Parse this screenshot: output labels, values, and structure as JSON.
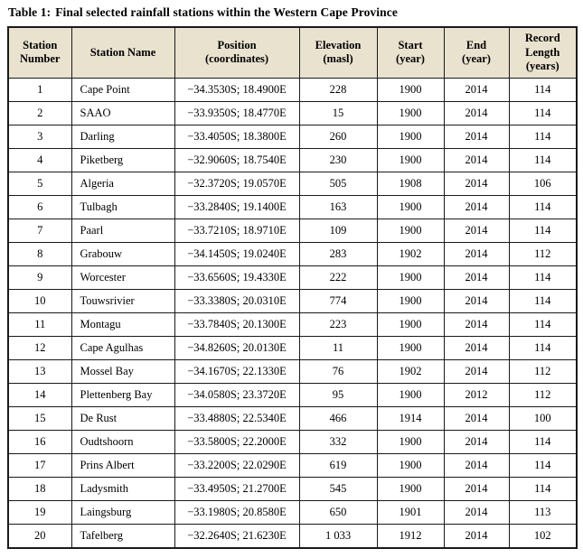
{
  "caption": {
    "label": "Table 1:",
    "text": "Final selected rainfall stations within the Western Cape Province"
  },
  "colors": {
    "header_background": "#e9e2cf",
    "border": "#1a1a1a",
    "text": "#000000"
  },
  "chart_data": {
    "type": "table",
    "title": "Table 1: Final selected rainfall stations within the Western Cape Province",
    "headers": [
      "Station\nNumber",
      "Station Name",
      "Position\n(coordinates)",
      "Elevation\n(masl)",
      "Start\n(year)",
      "End\n(year)",
      "Record\nLength\n(years)"
    ],
    "rows": [
      [
        "1",
        "Cape Point",
        "−34.3530S; 18.4900E",
        "228",
        "1900",
        "2014",
        "114"
      ],
      [
        "2",
        "SAAO",
        "−33.9350S; 18.4770E",
        "15",
        "1900",
        "2014",
        "114"
      ],
      [
        "3",
        "Darling",
        "−33.4050S; 18.3800E",
        "260",
        "1900",
        "2014",
        "114"
      ],
      [
        "4",
        "Piketberg",
        "−32.9060S; 18.7540E",
        "230",
        "1900",
        "2014",
        "114"
      ],
      [
        "5",
        "Algeria",
        "−32.3720S; 19.0570E",
        "505",
        "1908",
        "2014",
        "106"
      ],
      [
        "6",
        "Tulbagh",
        "−33.2840S; 19.1400E",
        "163",
        "1900",
        "2014",
        "114"
      ],
      [
        "7",
        "Paarl",
        "−33.7210S; 18.9710E",
        "109",
        "1900",
        "2014",
        "114"
      ],
      [
        "8",
        "Grabouw",
        "−34.1450S; 19.0240E",
        "283",
        "1902",
        "2014",
        "112"
      ],
      [
        "9",
        "Worcester",
        "−33.6560S; 19.4330E",
        "222",
        "1900",
        "2014",
        "114"
      ],
      [
        "10",
        "Touwsrivier",
        "−33.3380S; 20.0310E",
        "774",
        "1900",
        "2014",
        "114"
      ],
      [
        "11",
        "Montagu",
        "−33.7840S; 20.1300E",
        "223",
        "1900",
        "2014",
        "114"
      ],
      [
        "12",
        "Cape Agulhas",
        "−34.8260S; 20.0130E",
        "11",
        "1900",
        "2014",
        "114"
      ],
      [
        "13",
        "Mossel Bay",
        "−34.1670S; 22.1330E",
        "76",
        "1902",
        "2014",
        "112"
      ],
      [
        "14",
        "Plettenberg Bay",
        "−34.0580S; 23.3720E",
        "95",
        "1900",
        "2012",
        "112"
      ],
      [
        "15",
        "De Rust",
        "−33.4880S; 22.5340E",
        "466",
        "1914",
        "2014",
        "100"
      ],
      [
        "16",
        "Oudtshoorn",
        "−33.5800S; 22.2000E",
        "332",
        "1900",
        "2014",
        "114"
      ],
      [
        "17",
        "Prins Albert",
        "−33.2200S; 22.0290E",
        "619",
        "1900",
        "2014",
        "114"
      ],
      [
        "18",
        "Ladysmith",
        "−33.4950S; 21.2700E",
        "545",
        "1900",
        "2014",
        "114"
      ],
      [
        "19",
        "Laingsburg",
        "−33.1980S; 20.8580E",
        "650",
        "1901",
        "2014",
        "113"
      ],
      [
        "20",
        "Tafelberg",
        "−32.2640S; 21.6230E",
        "1 033",
        "1912",
        "2014",
        "102"
      ]
    ]
  }
}
